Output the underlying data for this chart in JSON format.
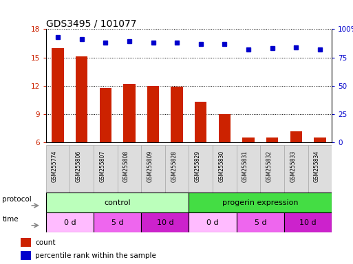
{
  "title": "GDS3495 / 101077",
  "samples": [
    "GSM255774",
    "GSM255806",
    "GSM255807",
    "GSM255808",
    "GSM255809",
    "GSM255828",
    "GSM255829",
    "GSM255830",
    "GSM255831",
    "GSM255832",
    "GSM255833",
    "GSM255834"
  ],
  "count_values": [
    16.0,
    15.1,
    11.8,
    12.2,
    12.0,
    11.9,
    10.3,
    9.0,
    6.5,
    6.5,
    7.2,
    6.5
  ],
  "percentile_values": [
    93,
    91,
    88,
    89,
    88,
    88,
    87,
    87,
    82,
    83,
    84,
    82
  ],
  "ylim_left": [
    6,
    18
  ],
  "ylim_right": [
    0,
    100
  ],
  "yticks_left": [
    6,
    9,
    12,
    15,
    18
  ],
  "yticks_right": [
    0,
    25,
    50,
    75,
    100
  ],
  "bar_color": "#cc2200",
  "dot_color": "#0000cc",
  "grid_color": "#000000",
  "protocol_control_color": "#bbffbb",
  "protocol_progerin_color": "#44dd44",
  "time_0d_color": "#ffbbff",
  "time_5d_color": "#ee66ee",
  "time_10d_color": "#cc22cc",
  "sample_box_color": "#dddddd",
  "legend_count_color": "#cc2200",
  "legend_pct_color": "#0000cc",
  "background_color": "#ffffff",
  "title_fontsize": 10,
  "bar_width": 0.5
}
